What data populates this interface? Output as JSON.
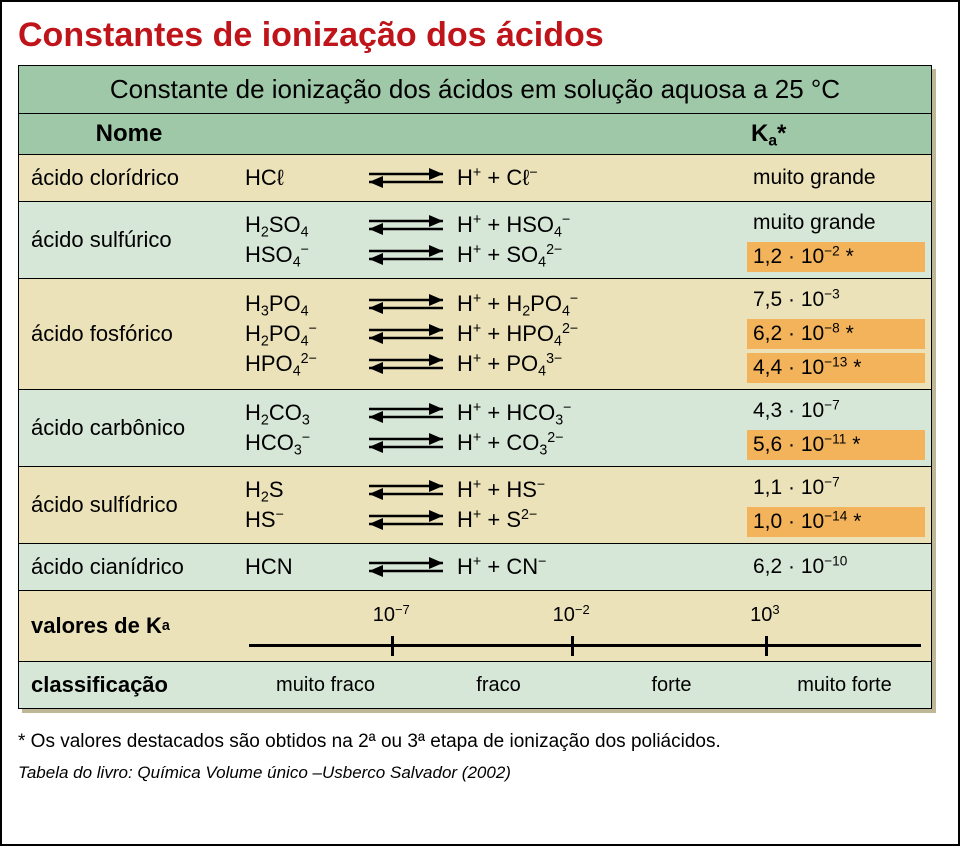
{
  "title": "Constantes de ionização dos ácidos",
  "table": {
    "header_line": "Constante de ionização dos ácidos em solução aquosa a 25 °C",
    "col_name": "Nome",
    "col_ka_html": "K<sub>a</sub>*",
    "rows": [
      {
        "name": "ácido clorídrico",
        "bg": "a",
        "equilibria": [
          {
            "lhs": "HCℓ",
            "rhs": "H<sup>+</sup> + Cℓ<sup>−</sup>"
          }
        ],
        "ka": [
          {
            "text": "muito grande",
            "hl": false
          }
        ]
      },
      {
        "name": "ácido sulfúrico",
        "bg": "b",
        "equilibria": [
          {
            "lhs": "H<sub>2</sub>SO<sub>4</sub>",
            "rhs": "H<sup>+</sup> + HSO<sub>4</sub><sup>−</sup>"
          },
          {
            "lhs": "HSO<sub>4</sub><sup>−</sup>",
            "rhs": "H<sup>+</sup> + SO<sub>4</sub><sup>2−</sup>"
          }
        ],
        "ka": [
          {
            "text": "muito grande",
            "hl": false
          },
          {
            "text": "1,2 · 10<sup>−2</sup> *",
            "hl": true
          }
        ]
      },
      {
        "name": "ácido fosfórico",
        "bg": "a",
        "equilibria": [
          {
            "lhs": "H<sub>3</sub>PO<sub>4</sub>",
            "rhs": "H<sup>+</sup> + H<sub>2</sub>PO<sub>4</sub><sup>−</sup>"
          },
          {
            "lhs": "H<sub>2</sub>PO<sub>4</sub><sup>−</sup>",
            "rhs": "H<sup>+</sup> + HPO<sub>4</sub><sup>2−</sup>"
          },
          {
            "lhs": "HPO<sub>4</sub><sup>2−</sup>",
            "rhs": "H<sup>+</sup> + PO<sub>4</sub><sup>3−</sup>"
          }
        ],
        "ka": [
          {
            "text": "7,5 · 10<sup>−3</sup>",
            "hl": false
          },
          {
            "text": "6,2 · 10<sup>−8</sup> *",
            "hl": true
          },
          {
            "text": "4,4 · 10<sup>−13</sup> *",
            "hl": true
          }
        ]
      },
      {
        "name": "ácido carbônico",
        "bg": "b",
        "equilibria": [
          {
            "lhs": "H<sub>2</sub>CO<sub>3</sub>",
            "rhs": "H<sup>+</sup> + HCO<sub>3</sub><sup>−</sup>"
          },
          {
            "lhs": "HCO<sub>3</sub><sup>−</sup>",
            "rhs": "H<sup>+</sup> + CO<sub>3</sub><sup>2−</sup>"
          }
        ],
        "ka": [
          {
            "text": "4,3 · 10<sup>−7</sup>",
            "hl": false
          },
          {
            "text": "5,6 · 10<sup>−11</sup> *",
            "hl": true
          }
        ]
      },
      {
        "name": "ácido sulfídrico",
        "bg": "a",
        "equilibria": [
          {
            "lhs": "H<sub>2</sub>S",
            "rhs": "H<sup>+</sup> + HS<sup>−</sup>"
          },
          {
            "lhs": "HS<sup>−</sup>",
            "rhs": "H<sup>+</sup> + S<sup>2−</sup>"
          }
        ],
        "ka": [
          {
            "text": "1,1 · 10<sup>−7</sup>",
            "hl": false
          },
          {
            "text": "1,0 · 10<sup>−14</sup> *",
            "hl": true
          }
        ]
      },
      {
        "name": "ácido cianídrico",
        "bg": "b",
        "equilibria": [
          {
            "lhs": "HCN",
            "rhs": "H<sup>+</sup> + CN<sup>−</sup>"
          }
        ],
        "ka": [
          {
            "text": "6,2 · 10<sup>−10</sup>",
            "hl": false
          }
        ]
      }
    ],
    "scale_label_html": "valores de K<sub>a</sub>",
    "class_label": "classificação",
    "scale": {
      "ticks": [
        {
          "label": "10<sup>−7</sup>",
          "pos_pct": 22
        },
        {
          "label": "10<sup>−2</sup>",
          "pos_pct": 48
        },
        {
          "label": "10<sup>3</sup>",
          "pos_pct": 76
        }
      ]
    },
    "classes": [
      "muito fraco",
      "fraco",
      "forte",
      "muito forte"
    ]
  },
  "footnote": "* Os valores destacados são obtidos na 2ª ou 3ª etapa de ionização dos poliácidos.",
  "caption": "Tabela do livro: Química Volume único –Usberco Salvador (2002)",
  "colors": {
    "title": "#c0141b",
    "bg_a": "#ece2ba",
    "bg_b": "#d6e6d7",
    "header_bg": "#9fc8a8",
    "highlight": "#f2b35a"
  },
  "arrow_svg_size": {
    "w": 86,
    "h": 26
  }
}
